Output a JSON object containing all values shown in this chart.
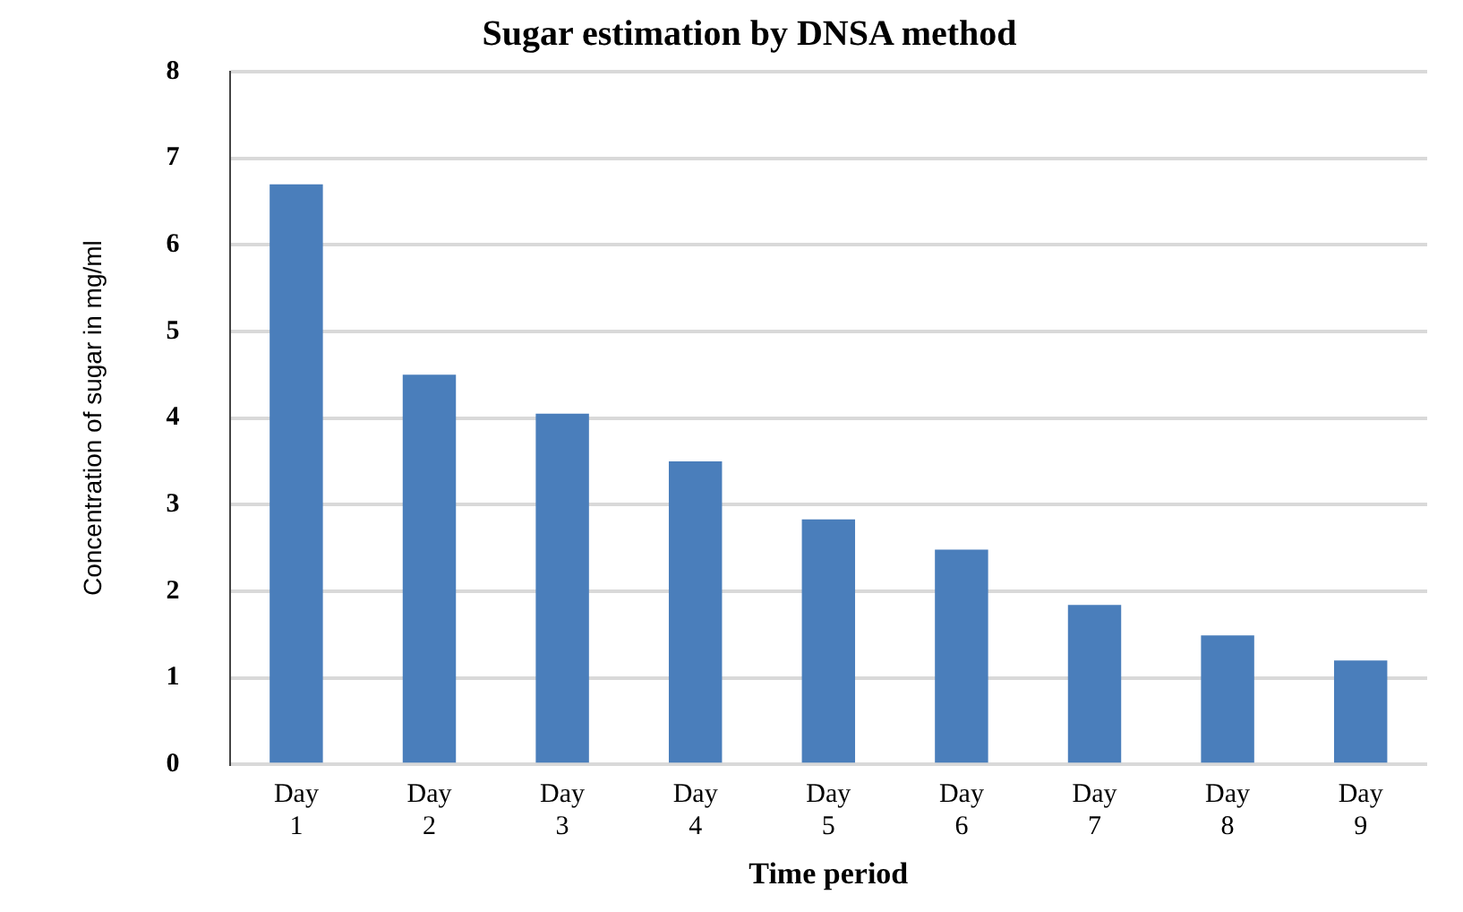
{
  "chart_data": {
    "type": "bar",
    "title": "Sugar estimation by DNSA method",
    "xlabel": "Time period",
    "ylabel": "Concentration of sugar in mg/ml",
    "categories": [
      "Day 1",
      "Day 2",
      "Day 3",
      "Day 4",
      "Day 5",
      "Day 6",
      "Day 7",
      "Day 8",
      "Day 9"
    ],
    "values": [
      6.7,
      4.5,
      4.05,
      3.5,
      2.83,
      2.48,
      1.84,
      1.49,
      1.2
    ],
    "color": "#4a7ebb",
    "ylim": [
      0,
      8
    ],
    "yticks": [
      0,
      1,
      2,
      3,
      4,
      5,
      6,
      7,
      8
    ],
    "grid": "y"
  }
}
